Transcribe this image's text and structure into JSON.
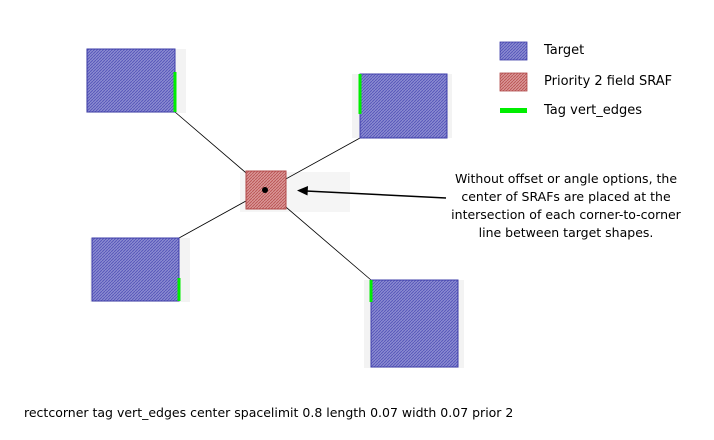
{
  "legend": {
    "target_label": "Target",
    "sraf_label": "Priority 2 field SRAF",
    "tag_label": "Tag vert_edges"
  },
  "annotation": {
    "lines": [
      "Without offset or angle options, the",
      "center of SRAFs are placed at the",
      "intersection of each corner-to-corner",
      "line between target shapes."
    ]
  },
  "caption": "rectcorner tag vert_edges center spacelimit 0.8 length 0.07 width 0.07 prior 2",
  "colors": {
    "target_fill": "#8a8ad0",
    "target_stroke": "#3c3ca8",
    "sraf_fill": "#d58a8a",
    "sraf_stroke": "#b04848",
    "tag": "#00ee00",
    "line": "#000000"
  }
}
